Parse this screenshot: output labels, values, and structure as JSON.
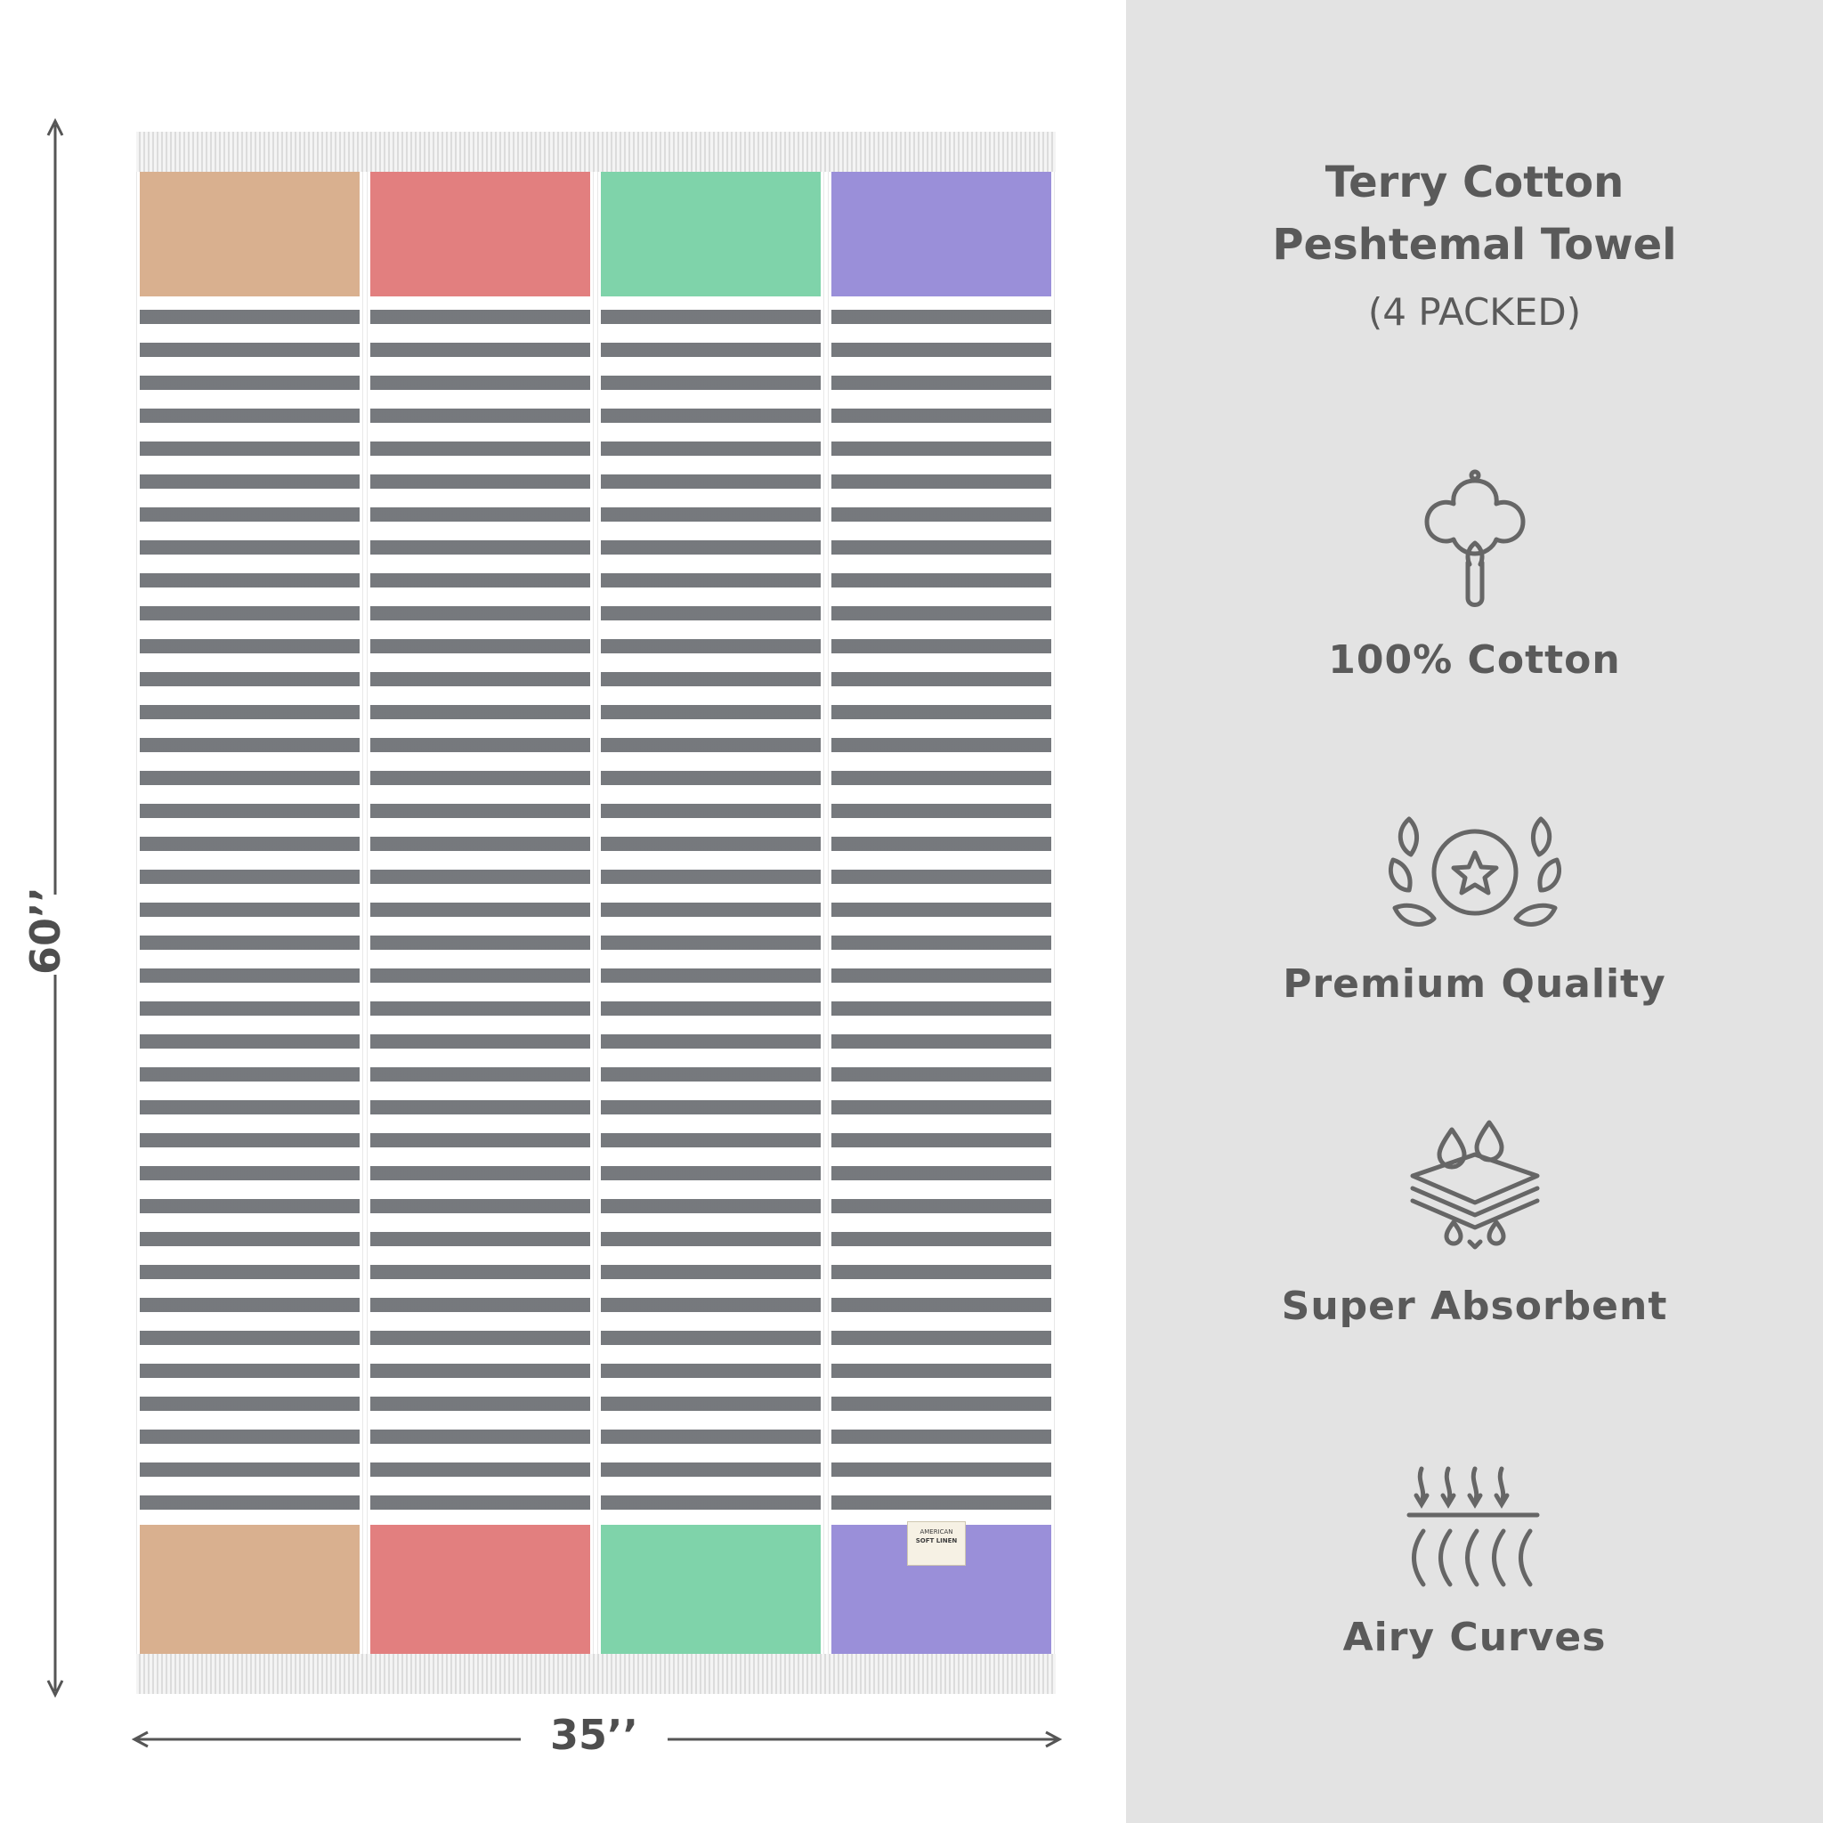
{
  "product": {
    "title_line1": "Terry Cotton",
    "title_line2": "Peshtemal Towel",
    "subtitle": "(4 PACKED)"
  },
  "features": [
    {
      "icon": "cotton-flower-icon",
      "label": "100% Cotton"
    },
    {
      "icon": "laurel-star-medal-icon",
      "label": "Premium Quality"
    },
    {
      "icon": "absorbent-layers-droplets-icon",
      "label": "Super Absorbent"
    },
    {
      "icon": "airflow-arrows-curves-icon",
      "label": "Airy Curves"
    }
  ],
  "dimensions": {
    "height": "60’’",
    "width": "35’’"
  },
  "towel": {
    "block_colors": [
      "#d9b08f",
      "#e27f7f",
      "#7fd3aa",
      "#9a8fd9"
    ],
    "stripe_color": "#5e6166",
    "label_line1": "AMERICAN",
    "label_line2": "SOFT LINEN"
  },
  "colors": {
    "panel_bg": "#e3e3e3",
    "text": "#5a5a5a"
  }
}
